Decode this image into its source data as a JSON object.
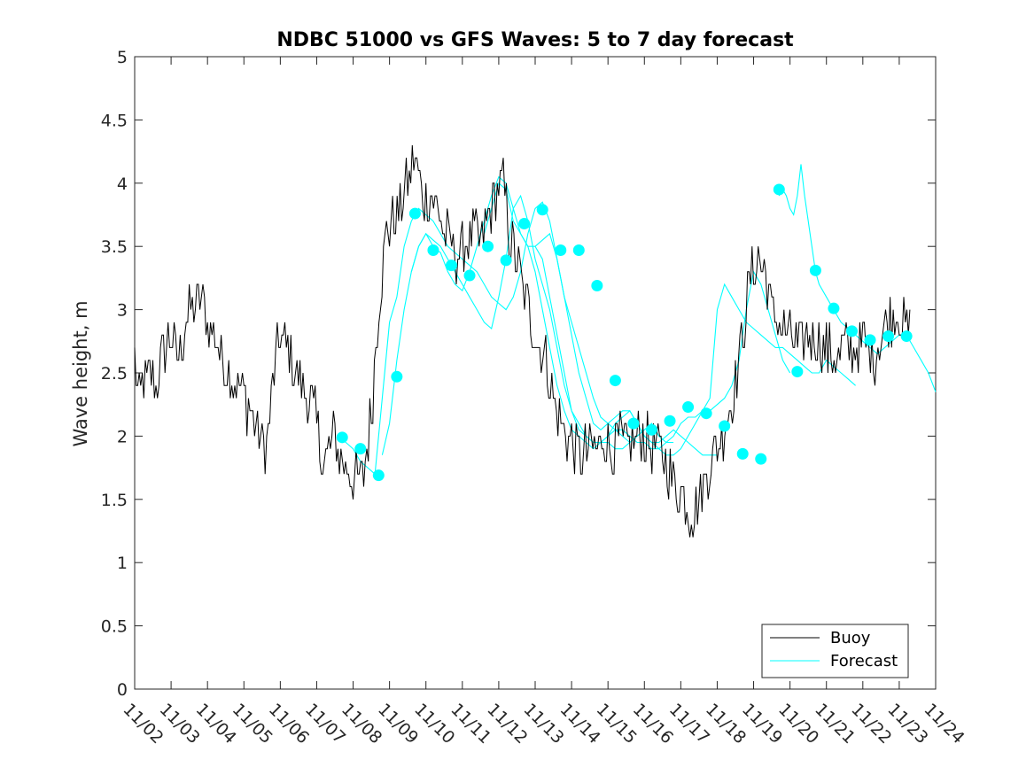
{
  "chart_data": {
    "type": "line",
    "title": "NDBC 51000 vs GFS Waves: 5 to 7 day forecast",
    "xlabel": "",
    "ylabel": "Wave height, m",
    "xlim": [
      0,
      22
    ],
    "ylim": [
      0,
      5
    ],
    "yticks": [
      0,
      0.5,
      1,
      1.5,
      2,
      2.5,
      3,
      3.5,
      4,
      4.5,
      5
    ],
    "ytick_labels": [
      "0",
      "0.5",
      "1",
      "1.5",
      "2",
      "2.5",
      "3",
      "3.5",
      "4",
      "4.5",
      "5"
    ],
    "xtick_labels": [
      "11/02",
      "11/03",
      "11/04",
      "11/05",
      "11/06",
      "11/07",
      "11/08",
      "11/09",
      "11/10",
      "11/11",
      "11/12",
      "11/13",
      "11/14",
      "11/15",
      "11/16",
      "11/17",
      "11/18",
      "11/19",
      "11/20",
      "11/21",
      "11/22",
      "11/23",
      "11/24"
    ],
    "legend": {
      "location": "bottom-right",
      "entries": [
        "Buoy",
        "Forecast"
      ]
    },
    "colors": {
      "buoy": "#000000",
      "forecast": "#00ffff",
      "axes": "#262626"
    },
    "buoy_series": {
      "name": "Buoy",
      "x": [
        0,
        0.1,
        0.25,
        0.4,
        0.6,
        0.8,
        1.0,
        1.2,
        1.4,
        1.6,
        1.8,
        2.0,
        2.2,
        2.4,
        2.6,
        2.8,
        3.0,
        3.2,
        3.4,
        3.6,
        3.8,
        3.9,
        4.0,
        4.2,
        4.4,
        4.6,
        4.8,
        5.0,
        5.1,
        5.2,
        5.35,
        5.5,
        5.7,
        5.9,
        6.1,
        6.3,
        6.5,
        6.7,
        6.9,
        7.1,
        7.3,
        7.5,
        7.7,
        7.9,
        8.1,
        8.3,
        8.5,
        8.7,
        8.9,
        9.1,
        9.3,
        9.5,
        9.7,
        9.9,
        10.1,
        10.3,
        10.5,
        10.7,
        10.9,
        11.1,
        11.3,
        11.5,
        11.7,
        11.9,
        12.1,
        12.3,
        12.5,
        12.7,
        12.9,
        13.1,
        13.3,
        13.5,
        13.7,
        13.9,
        14.1,
        14.3,
        14.5,
        14.7,
        14.9,
        15.1,
        15.3,
        15.5,
        15.7,
        15.9,
        16.1,
        16.3,
        16.5,
        16.7,
        16.9,
        17.1,
        17.3,
        17.5,
        17.7,
        17.9,
        18.1,
        18.3,
        18.5,
        18.7,
        18.9,
        19.1,
        19.3,
        19.5,
        19.7,
        19.9,
        20.1,
        20.3,
        20.5,
        20.7,
        20.9,
        21.1,
        21.3
      ],
      "values": [
        2.6,
        2.3,
        2.4,
        2.5,
        2.4,
        2.7,
        2.8,
        2.6,
        2.9,
        3.0,
        3.1,
        2.9,
        2.8,
        2.6,
        2.5,
        2.4,
        2.3,
        2.2,
        2.0,
        1.9,
        2.4,
        2.6,
        2.8,
        2.7,
        2.5,
        2.4,
        2.3,
        2.1,
        1.9,
        1.8,
        1.9,
        2.0,
        1.8,
        1.7,
        1.65,
        1.7,
        2.2,
        3.0,
        3.6,
        3.7,
        3.8,
        4.0,
        4.2,
        3.9,
        3.9,
        3.8,
        3.6,
        3.5,
        3.4,
        3.5,
        3.6,
        3.5,
        3.7,
        3.9,
        4.0,
        3.6,
        3.4,
        3.1,
        2.9,
        2.7,
        2.6,
        2.3,
        2.1,
        2.0,
        1.9,
        1.85,
        1.9,
        1.9,
        2.0,
        1.9,
        1.95,
        1.9,
        1.95,
        2.0,
        1.95,
        1.9,
        1.85,
        1.7,
        1.6,
        1.5,
        1.4,
        1.5,
        1.7,
        1.85,
        2.0,
        2.2,
        2.4,
        2.8,
        3.2,
        3.4,
        3.3,
        3.0,
        2.9,
        2.8,
        2.75,
        2.7,
        2.8,
        2.75,
        2.7,
        2.65,
        2.6,
        2.7,
        2.65,
        2.7,
        2.75,
        2.6,
        2.8,
        2.9,
        3.0,
        2.9,
        2.8
      ]
    },
    "forecast_series": [
      {
        "name": "Forecast",
        "x": [
          5.6,
          5.8,
          6.0,
          6.2,
          6.4,
          6.6,
          6.8,
          7.0,
          7.2,
          7.4,
          7.6,
          7.8,
          8.0,
          8.2,
          8.4,
          8.6,
          8.8,
          9.0,
          9.2,
          9.4,
          9.6,
          9.8,
          10.0,
          10.2,
          10.4,
          10.6,
          10.8,
          11.0,
          11.2,
          11.4,
          11.6,
          11.8,
          12.0,
          12.2,
          12.4,
          12.6,
          12.8,
          13.0,
          13.2,
          13.4,
          13.6
        ],
        "values": [
          2.0,
          1.95,
          1.9,
          1.8,
          1.75,
          1.7,
          2.3,
          2.9,
          3.1,
          3.5,
          3.7,
          3.8,
          3.75,
          3.7,
          3.6,
          3.5,
          3.45,
          3.4,
          3.35,
          3.3,
          3.2,
          3.1,
          3.05,
          3.0,
          3.1,
          3.3,
          3.6,
          3.8,
          3.85,
          3.7,
          3.4,
          3.1,
          2.9,
          2.7,
          2.5,
          2.3,
          2.15,
          2.1,
          2.05,
          2.0,
          1.95
        ]
      },
      {
        "name": "Forecast",
        "x": [
          6.8,
          7.0,
          7.2,
          7.4,
          7.6,
          7.8,
          8.0,
          8.2,
          8.4,
          8.6,
          8.8,
          9.0,
          9.2,
          9.4,
          9.6,
          9.8,
          10.0,
          10.2,
          10.4,
          10.6,
          10.8,
          11.0,
          11.2,
          11.4,
          11.6,
          11.8,
          12.0,
          12.2,
          12.4,
          12.6,
          12.8,
          13.0,
          13.2,
          13.4,
          13.6,
          13.8,
          14.0,
          14.2,
          14.4,
          14.6,
          14.8
        ],
        "values": [
          1.85,
          2.1,
          2.6,
          3.0,
          3.3,
          3.5,
          3.6,
          3.55,
          3.5,
          3.4,
          3.3,
          3.2,
          3.1,
          3.0,
          2.9,
          2.85,
          3.1,
          3.4,
          3.8,
          3.9,
          3.7,
          3.4,
          3.2,
          3.0,
          2.7,
          2.4,
          2.2,
          2.05,
          2.0,
          1.95,
          1.95,
          1.95,
          1.9,
          1.9,
          1.95,
          2.0,
          2.05,
          2.1,
          2.0,
          1.95,
          1.95
        ]
      },
      {
        "name": "Forecast",
        "x": [
          7.6,
          7.8,
          8.0,
          8.2,
          8.4,
          8.6,
          8.8,
          9.0,
          9.2,
          9.4,
          9.6,
          9.8,
          10.0,
          10.2,
          10.4,
          10.6,
          10.8,
          11.0,
          11.2,
          11.4,
          11.6,
          11.8,
          12.0,
          12.2,
          12.4,
          12.6,
          12.8,
          13.0,
          13.2,
          13.4,
          13.6,
          13.8,
          14.0,
          14.2,
          14.4,
          14.6,
          14.8,
          15.0,
          15.2,
          15.4,
          15.6,
          15.8,
          16.0
        ],
        "values": [
          3.3,
          3.5,
          3.6,
          3.5,
          3.45,
          3.3,
          3.2,
          3.15,
          3.3,
          3.5,
          3.7,
          3.9,
          4.05,
          4.0,
          3.8,
          3.6,
          3.5,
          3.3,
          3.0,
          2.7,
          2.4,
          2.2,
          2.05,
          2.0,
          1.95,
          1.9,
          1.95,
          2.0,
          2.1,
          2.15,
          2.2,
          2.1,
          2.0,
          1.95,
          1.95,
          2.0,
          2.05,
          2.0,
          1.95,
          1.9,
          1.85,
          1.85,
          1.85
        ]
      },
      {
        "name": "Forecast",
        "x": [
          9.6,
          9.8,
          10.0,
          10.2,
          10.4,
          10.6,
          10.8,
          11.0,
          11.2,
          11.4,
          11.6,
          11.8,
          12.0,
          12.2,
          12.4,
          12.6,
          12.8,
          13.0,
          13.2,
          13.4,
          13.6,
          13.8,
          14.0,
          14.2,
          14.4,
          14.6,
          14.8,
          15.0,
          15.2,
          15.4,
          15.6,
          15.8,
          16.0,
          16.2,
          16.4,
          16.6,
          16.8,
          17.0,
          17.2,
          17.4,
          17.6,
          17.8,
          18.0
        ],
        "values": [
          3.6,
          3.8,
          4.0,
          3.95,
          3.7,
          3.6,
          3.5,
          3.5,
          3.4,
          3.1,
          2.8,
          2.5,
          2.2,
          2.1,
          2.0,
          1.95,
          1.95,
          2.0,
          2.05,
          2.05,
          2.0,
          1.95,
          1.95,
          1.9,
          1.9,
          1.95,
          2.0,
          2.1,
          2.15,
          2.15,
          2.2,
          2.2,
          2.25,
          2.3,
          2.4,
          2.6,
          3.0,
          3.3,
          3.2,
          3.0,
          2.8,
          2.6,
          2.5
        ]
      },
      {
        "name": "Forecast",
        "x": [
          11.0,
          11.2,
          11.4,
          11.6,
          11.8,
          12.0,
          12.2,
          12.4,
          12.6,
          12.8,
          13.0,
          13.2,
          13.4,
          13.6,
          13.8,
          14.0,
          14.2,
          14.4,
          14.6,
          14.8,
          15.0,
          15.2,
          15.4,
          15.6,
          15.8,
          16.0,
          16.2,
          16.4,
          16.6,
          16.8,
          17.0,
          17.2,
          17.4,
          17.6,
          17.8,
          18.0,
          18.2,
          18.4,
          18.6,
          18.8,
          19.0,
          19.2,
          19.4,
          19.6,
          19.8
        ],
        "values": [
          3.5,
          3.55,
          3.6,
          3.4,
          3.1,
          2.8,
          2.5,
          2.3,
          2.1,
          2.05,
          2.1,
          2.15,
          2.2,
          2.2,
          2.1,
          2.0,
          1.95,
          1.9,
          1.85,
          1.85,
          1.9,
          2.0,
          2.1,
          2.2,
          2.3,
          3.0,
          3.2,
          3.1,
          3.0,
          2.9,
          2.85,
          2.8,
          2.75,
          2.7,
          2.7,
          2.65,
          2.6,
          2.55,
          2.5,
          2.5,
          2.6,
          2.55,
          2.5,
          2.45,
          2.4
        ]
      },
      {
        "name": "Forecast",
        "x": [
          17.7,
          17.8,
          17.9,
          18.0,
          18.1,
          18.2,
          18.3,
          18.4,
          18.5,
          18.6,
          18.7,
          18.8,
          19.0,
          19.2,
          19.4,
          19.6,
          19.8,
          20.0,
          20.2,
          20.4,
          20.6,
          20.8,
          21.0,
          21.2,
          21.4,
          21.6,
          21.8,
          22.0
        ],
        "values": [
          3.9,
          3.95,
          3.9,
          3.8,
          3.75,
          3.9,
          4.15,
          3.9,
          3.7,
          3.5,
          3.3,
          3.2,
          3.1,
          3.0,
          2.9,
          2.85,
          2.8,
          2.75,
          2.7,
          2.65,
          2.7,
          2.75,
          2.8,
          2.8,
          2.7,
          2.6,
          2.5,
          2.35
        ]
      }
    ],
    "forecast_markers": {
      "x": [
        5.7,
        6.2,
        6.7,
        7.2,
        7.7,
        8.2,
        8.7,
        9.2,
        9.7,
        10.2,
        10.7,
        11.2,
        11.7,
        12.2,
        12.7,
        13.2,
        13.7,
        14.2,
        14.7,
        15.2,
        15.7,
        16.2,
        16.7,
        17.2,
        17.7,
        18.2,
        18.7,
        19.2,
        19.7,
        20.2,
        20.7,
        21.2
      ],
      "values": [
        1.99,
        1.9,
        1.69,
        2.47,
        3.76,
        3.47,
        3.35,
        3.27,
        3.5,
        3.39,
        3.68,
        3.79,
        3.47,
        3.47,
        3.19,
        2.44,
        2.1,
        2.05,
        2.12,
        2.23,
        2.18,
        2.08,
        1.86,
        1.82,
        3.95,
        2.51,
        3.31,
        3.01,
        2.83,
        2.76,
        2.79,
        2.79
      ]
    }
  }
}
